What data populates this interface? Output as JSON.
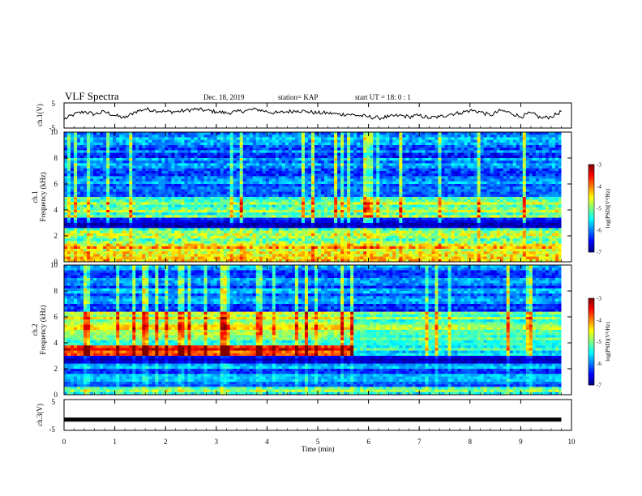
{
  "header": {
    "title": "VLF Spectra",
    "date": "Dec. 18, 2019",
    "station": "station= KAP",
    "start": "start  UT =   18: 0  : 1"
  },
  "chart_data": [
    {
      "id": "ch1-voltage",
      "type": "line",
      "ylabel": "ch.1(V)",
      "ylim": [
        -5,
        5
      ],
      "y_ticks": [
        "5",
        "-5"
      ],
      "x": [
        0,
        0.2,
        0.4,
        0.6,
        0.8,
        1.0,
        1.2,
        1.4,
        1.6,
        1.8,
        2.0,
        2.2,
        2.4,
        2.6,
        2.8,
        3.0,
        3.2,
        3.4,
        3.6,
        3.8,
        4.0,
        4.2,
        4.4,
        4.6,
        4.8,
        5.0,
        5.2,
        5.4,
        5.6,
        5.8,
        6.0,
        6.2,
        6.4,
        6.6,
        6.8,
        7.0,
        7.2,
        7.4,
        7.6,
        7.8,
        8.0,
        8.2,
        8.4,
        8.6,
        8.8,
        9.0,
        9.2,
        9.4,
        9.6,
        9.8
      ],
      "values": [
        -1.5,
        0.5,
        1.5,
        0.5,
        1.5,
        0.0,
        -1.0,
        1.5,
        2.5,
        2.0,
        1.5,
        1.5,
        2.0,
        2.5,
        2.0,
        1.5,
        1.0,
        1.5,
        2.0,
        2.5,
        1.5,
        1.0,
        1.5,
        2.0,
        1.5,
        1.0,
        1.0,
        0.5,
        0.5,
        0.0,
        -0.5,
        -1.0,
        -0.5,
        0.0,
        -0.5,
        0.0,
        -1.0,
        -0.5,
        0.5,
        1.0,
        2.0,
        1.5,
        0.0,
        2.0,
        1.0,
        -0.5,
        1.0,
        -1.0,
        -0.5,
        1.5
      ],
      "color": "#000000"
    },
    {
      "id": "ch1-spectrogram",
      "type": "heatmap",
      "ylabel": "ch.1\nFrequency (kHz)",
      "ylim": [
        0,
        10
      ],
      "y_ticks": [
        "0",
        "2",
        "4",
        "6",
        "8",
        "10"
      ],
      "colorbar": {
        "label": "log(PSD)(V²/Hz)",
        "range": [
          -7,
          -3
        ],
        "ticks": [
          "-3",
          "-4",
          "-5",
          "-6",
          "-7"
        ]
      },
      "change_at_min": 5.7
    },
    {
      "id": "ch2-spectrogram",
      "type": "heatmap",
      "ylabel": "ch.2\nFrequency (kHz)",
      "ylim": [
        0,
        10
      ],
      "y_ticks": [
        "0",
        "2",
        "4",
        "6",
        "8",
        "10"
      ],
      "colorbar": {
        "label": "log(PSD)(V²/Hz)",
        "range": [
          -7,
          -3
        ],
        "ticks": [
          "-3",
          "-4",
          "-5",
          "-6",
          "-7"
        ]
      },
      "change_at_min": 5.7
    },
    {
      "id": "ch3-voltage",
      "type": "line",
      "ylabel": "ch.3(V)",
      "ylim": [
        -5,
        5
      ],
      "y_ticks": [
        "5",
        "-5"
      ],
      "x": [
        0,
        9.8
      ],
      "values": [
        -1.5,
        -1.5
      ],
      "color": "#000000"
    }
  ],
  "x_axis": {
    "label": "Time  (min)",
    "range": [
      0,
      10
    ],
    "ticks": [
      "0",
      "1",
      "2",
      "3",
      "4",
      "5",
      "6",
      "7",
      "8",
      "9",
      "10"
    ]
  }
}
